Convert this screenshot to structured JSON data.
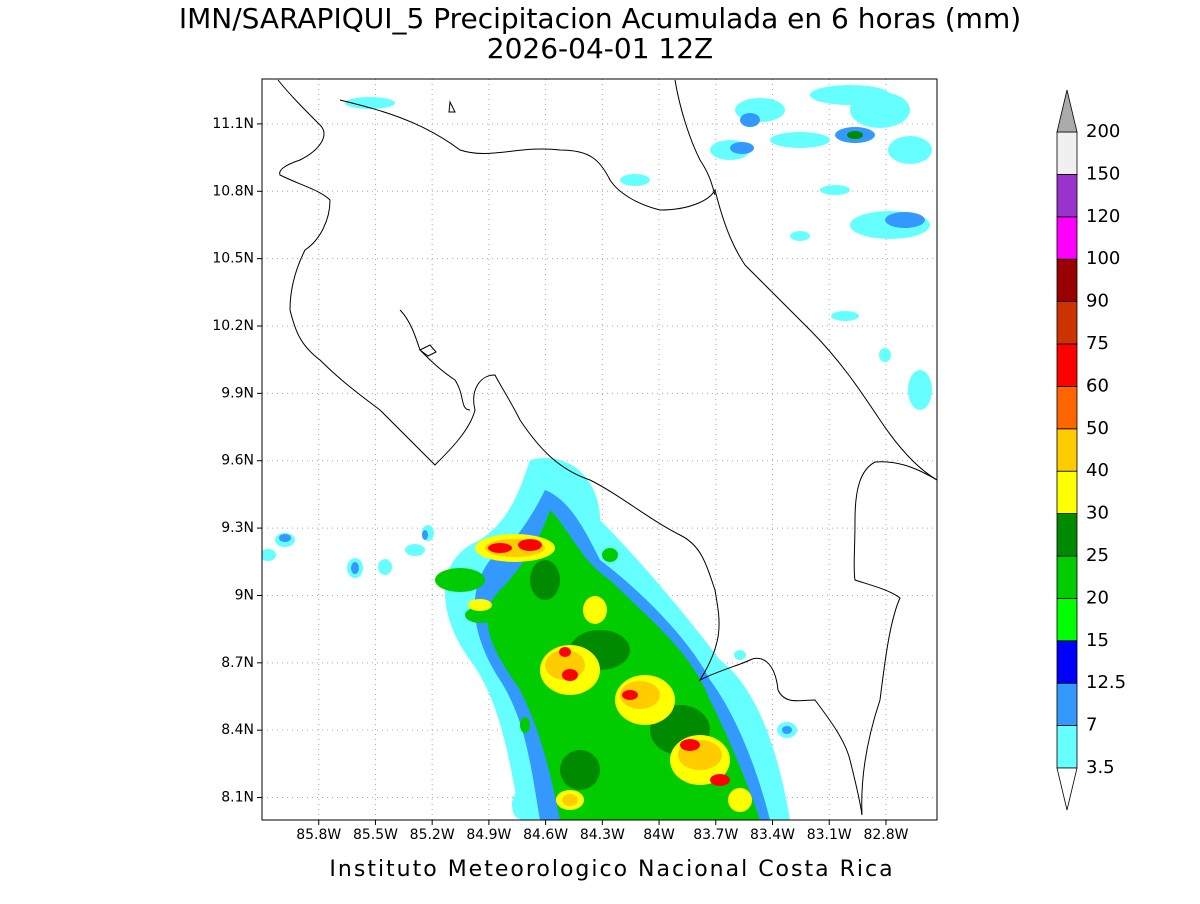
{
  "title": [
    "IMN/SARAPIQUI_5 Precipitacion Acumulada en 6 horas (mm)",
    "2026-04-01 12Z"
  ],
  "lon_range": [
    -86.1,
    -82.53
  ],
  "lat_range": [
    8.0,
    11.3
  ],
  "lon_ticks": [
    {
      "value": -85.8,
      "label": "85.8W"
    },
    {
      "value": -85.5,
      "label": "85.5W"
    },
    {
      "value": -85.2,
      "label": "85.2W"
    },
    {
      "value": -84.9,
      "label": "84.9W"
    },
    {
      "value": -84.6,
      "label": "84.6W"
    },
    {
      "value": -84.3,
      "label": "84.3W"
    },
    {
      "value": -84.0,
      "label": "84W"
    },
    {
      "value": -83.7,
      "label": "83.7W"
    },
    {
      "value": -83.4,
      "label": "83.4W"
    },
    {
      "value": -83.1,
      "label": "83.1W"
    },
    {
      "value": -82.8,
      "label": "82.8W"
    }
  ],
  "lat_ticks": [
    {
      "value": 11.1,
      "label": "11.1N"
    },
    {
      "value": 10.8,
      "label": "10.8N"
    },
    {
      "value": 10.5,
      "label": "10.5N"
    },
    {
      "value": 10.2,
      "label": "10.2N"
    },
    {
      "value": 9.9,
      "label": "9.9N"
    },
    {
      "value": 9.6,
      "label": "9.6N"
    },
    {
      "value": 9.3,
      "label": "9.3N"
    },
    {
      "value": 9.0,
      "label": "9N"
    },
    {
      "value": 8.7,
      "label": "8.7N"
    },
    {
      "value": 8.4,
      "label": "8.4N"
    },
    {
      "value": 8.1,
      "label": "8.1N"
    }
  ],
  "colorbar": {
    "levels": [
      3.5,
      7,
      12.5,
      15,
      20,
      25,
      30,
      40,
      50,
      60,
      75,
      90,
      100,
      120,
      150,
      200
    ],
    "colors": [
      "#66ffff",
      "#3399ff",
      "#0000ff",
      "#00ff00",
      "#00cc00",
      "#008a00",
      "#ffff00",
      "#ffcc00",
      "#ff6600",
      "#ff0000",
      "#cc3300",
      "#990000",
      "#ff00ff",
      "#9933cc",
      "#f0f0f0"
    ],
    "under_color": "#ffffff",
    "over_color": "#aaaaaa"
  },
  "footer": "Instituto Meteorologico Nacional Costa Rica"
}
